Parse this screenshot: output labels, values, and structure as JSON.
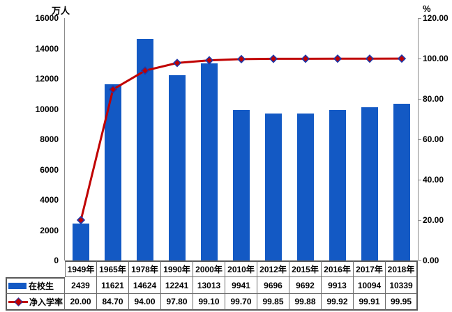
{
  "axis_titles": {
    "left": "万人",
    "right": "%"
  },
  "chart_data": {
    "type": "combo",
    "categories": [
      "1949年",
      "1965年",
      "1978年",
      "1990年",
      "2000年",
      "2010年",
      "2012年",
      "2015年",
      "2016年",
      "2017年",
      "2018年"
    ],
    "series": [
      {
        "name": "在校生",
        "type": "bar",
        "axis": "left",
        "color": "#1359c4",
        "values": [
          2439,
          11621,
          14624,
          12241,
          13013,
          9941,
          9696,
          9692,
          9913,
          10094,
          10339
        ]
      },
      {
        "name": "净入学率",
        "type": "line",
        "axis": "right",
        "color": "#c00000",
        "marker": "diamond",
        "marker_fill": "#c00000",
        "marker_border": "#2038a8",
        "values": [
          20.0,
          84.7,
          94.0,
          97.8,
          99.1,
          99.7,
          99.85,
          99.88,
          99.92,
          99.91,
          99.95
        ]
      }
    ],
    "left_axis": {
      "title": "万人",
      "min": 0,
      "max": 16000,
      "tick_step": 2000,
      "ticks": [
        "16000",
        "14000",
        "12000",
        "10000",
        "8000",
        "6000",
        "4000",
        "2000",
        "0"
      ]
    },
    "right_axis": {
      "title": "%",
      "min": 0,
      "max": 120,
      "tick_step": 20,
      "ticks": [
        "120.00",
        "100.00",
        "80.00",
        "60.00",
        "40.00",
        "20.00",
        "0.00"
      ]
    },
    "grid": false,
    "legend_position": "data-table-left"
  },
  "table": {
    "header_cells": [
      "1949年",
      "1965年",
      "1978年",
      "1990年",
      "2000年",
      "2010年",
      "2012年",
      "2015年",
      "2016年",
      "2017年",
      "2018年"
    ],
    "rows": [
      {
        "label": "在校生",
        "cells": [
          "2439",
          "11621",
          "14624",
          "12241",
          "13013",
          "9941",
          "9696",
          "9692",
          "9913",
          "10094",
          "10339"
        ]
      },
      {
        "label": "净入学率",
        "cells": [
          "20.00",
          "84.70",
          "94.00",
          "97.80",
          "99.10",
          "99.70",
          "99.85",
          "99.88",
          "99.92",
          "99.91",
          "99.95"
        ]
      }
    ]
  }
}
